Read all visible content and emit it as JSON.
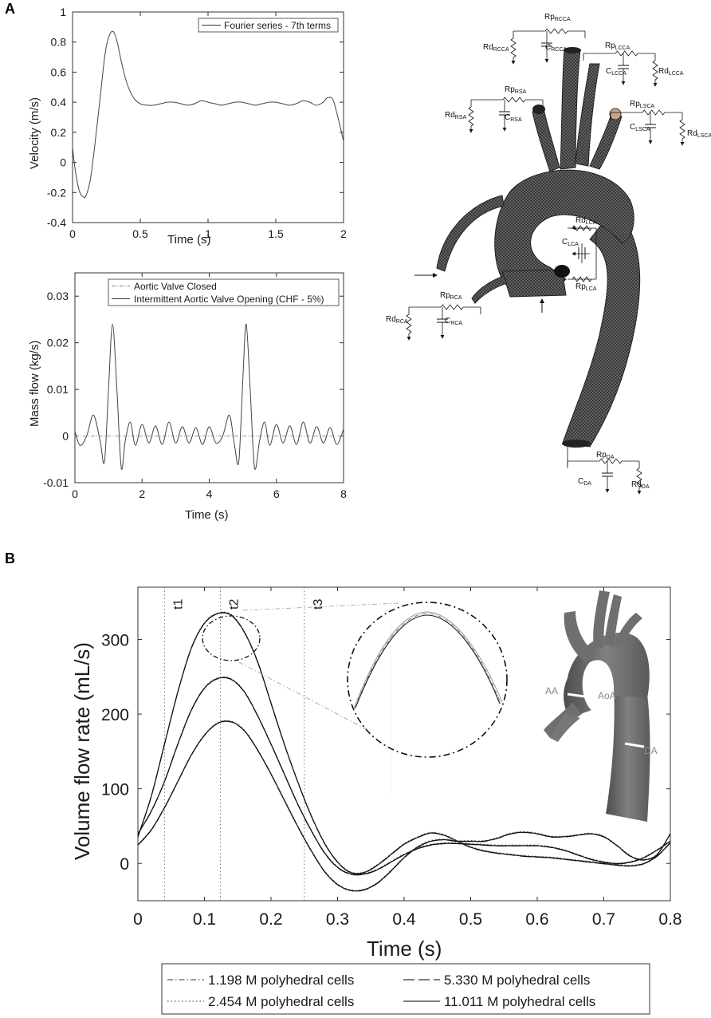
{
  "panels": {
    "a_label": "A",
    "b_label": "B"
  },
  "chart_data": [
    {
      "type": "line",
      "panel": "A",
      "xlabel": "Time (s)",
      "ylabel": "Velocity (m/s)",
      "xlim": [
        0,
        2
      ],
      "ylim": [
        -0.4,
        1
      ],
      "xticks": [
        0,
        0.5,
        1,
        1.5,
        2
      ],
      "xticklabels": [
        "0",
        "0.5",
        "1",
        "1.5",
        "2"
      ],
      "yticks": [
        -0.4,
        -0.2,
        0,
        0.2,
        0.4,
        0.6,
        0.8,
        1
      ],
      "yticklabels": [
        "-0.4",
        "-0.2",
        "0",
        "0.2",
        "0.4",
        "0.6",
        "0.8",
        "1"
      ],
      "legend_position": "top-right",
      "grid": false,
      "series": [
        {
          "name": "Fourier series - 7th terms",
          "style": "solid",
          "x": [
            0,
            0.02,
            0.05,
            0.08,
            0.1,
            0.13,
            0.16,
            0.2,
            0.24,
            0.27,
            0.3,
            0.33,
            0.36,
            0.4,
            0.45,
            0.5,
            0.55,
            0.6,
            0.65,
            0.7,
            0.75,
            0.8,
            0.85,
            0.9,
            0.95,
            1.0,
            1.05,
            1.1,
            1.15,
            1.2,
            1.25,
            1.3,
            1.35,
            1.4,
            1.45,
            1.5,
            1.55,
            1.6,
            1.65,
            1.7,
            1.75,
            1.8,
            1.85,
            1.88,
            1.92,
            1.95,
            1.98,
            2.0
          ],
          "y": [
            0.1,
            -0.05,
            -0.19,
            -0.23,
            -0.22,
            -0.12,
            0.08,
            0.4,
            0.72,
            0.84,
            0.87,
            0.8,
            0.67,
            0.53,
            0.43,
            0.39,
            0.38,
            0.38,
            0.39,
            0.4,
            0.4,
            0.39,
            0.38,
            0.39,
            0.41,
            0.4,
            0.39,
            0.38,
            0.39,
            0.4,
            0.4,
            0.39,
            0.38,
            0.39,
            0.4,
            0.4,
            0.39,
            0.38,
            0.39,
            0.41,
            0.4,
            0.38,
            0.4,
            0.43,
            0.42,
            0.33,
            0.22,
            0.14
          ]
        }
      ]
    },
    {
      "type": "line",
      "panel": "A",
      "xlabel": "Time (s)",
      "ylabel": "Mass flow (kg/s)",
      "xlim": [
        0,
        8
      ],
      "ylim": [
        -0.01,
        0.035
      ],
      "xticks": [
        0,
        2,
        4,
        6,
        8
      ],
      "xticklabels": [
        "0",
        "2",
        "4",
        "6",
        "8"
      ],
      "yticks": [
        -0.01,
        0,
        0.01,
        0.02,
        0.03
      ],
      "yticklabels": [
        "-0.01",
        "0",
        "0.01",
        "0.02",
        "0.03"
      ],
      "legend_position": "top-right",
      "grid": false,
      "series": [
        {
          "name": "Aortic Valve Closed",
          "style": "dash-dot",
          "x": [
            0,
            8
          ],
          "y": [
            0,
            0
          ]
        },
        {
          "name": "Intermittent Aortic Valve Opening (CHF - 5%)",
          "style": "solid",
          "x": [
            0,
            0.15,
            0.35,
            0.55,
            0.75,
            0.88,
            1.0,
            1.12,
            1.25,
            1.38,
            1.5,
            1.65,
            1.8,
            2.0,
            2.2,
            2.4,
            2.6,
            2.8,
            3.0,
            3.2,
            3.4,
            3.6,
            3.8,
            4.0,
            4.2,
            4.4,
            4.6,
            4.75,
            4.88,
            5.0,
            5.1,
            5.22,
            5.35,
            5.5,
            5.65,
            5.8,
            6.0,
            6.2,
            6.4,
            6.6,
            6.8,
            7.0,
            7.2,
            7.4,
            7.6,
            7.8,
            8.0
          ],
          "y": [
            0.001,
            -0.002,
            0.0,
            0.0045,
            -0.001,
            -0.0055,
            0.01,
            0.024,
            0.01,
            -0.0068,
            -0.001,
            0.003,
            -0.002,
            0.0025,
            -0.0015,
            0.0022,
            -0.0018,
            0.003,
            -0.0015,
            0.002,
            -0.0015,
            0.0018,
            -0.0018,
            0.002,
            -0.0015,
            0.0,
            0.0045,
            -0.0018,
            -0.0055,
            0.012,
            0.024,
            0.01,
            -0.0068,
            -0.001,
            0.003,
            -0.002,
            0.0025,
            -0.0015,
            0.0022,
            -0.0018,
            0.003,
            -0.0015,
            0.002,
            -0.0015,
            0.0018,
            -0.0018,
            0.0015
          ]
        }
      ]
    },
    {
      "type": "line",
      "panel": "B",
      "xlabel": "Time (s)",
      "ylabel": "Volume flow rate (mL/s)",
      "xlim": [
        0,
        0.8
      ],
      "ylim": [
        -50,
        370
      ],
      "xticks": [
        0,
        0.1,
        0.2,
        0.3,
        0.4,
        0.5,
        0.6,
        0.7,
        0.8
      ],
      "xticklabels": [
        "0",
        "0.1",
        "0.2",
        "0.3",
        "0.4",
        "0.5",
        "0.6",
        "0.7",
        "0.8"
      ],
      "yticks": [
        0,
        100,
        200,
        300
      ],
      "yticklabels": [
        "0",
        "100",
        "200",
        "300"
      ],
      "legend_position": "bottom",
      "grid": false,
      "time_markers": [
        {
          "label": "t1",
          "x": 0.04
        },
        {
          "label": "t2",
          "x": 0.124
        },
        {
          "label": "t3",
          "x": 0.25
        }
      ],
      "legend": [
        {
          "name": "1.198 M polyhedral cells",
          "style": "dash-dot"
        },
        {
          "name": "5.330 M polyhedral cells",
          "style": "long-dash"
        },
        {
          "name": "2.454 M polyhedral cells",
          "style": "dotted"
        },
        {
          "name": "11.011 M polyhedral cells",
          "style": "solid"
        }
      ],
      "curves": [
        {
          "segment": "AA",
          "x": [
            0,
            0.02,
            0.04,
            0.06,
            0.08,
            0.1,
            0.12,
            0.14,
            0.16,
            0.18,
            0.2,
            0.22,
            0.24,
            0.26,
            0.28,
            0.3,
            0.32,
            0.34,
            0.36,
            0.38,
            0.4,
            0.42,
            0.44,
            0.46,
            0.48,
            0.5,
            0.52,
            0.54,
            0.56,
            0.58,
            0.6,
            0.62,
            0.64,
            0.66,
            0.68,
            0.7,
            0.72,
            0.74,
            0.76,
            0.78,
            0.8
          ],
          "y": [
            36,
            90,
            160,
            230,
            288,
            322,
            335,
            333,
            310,
            270,
            215,
            160,
            110,
            65,
            28,
            2,
            -12,
            -12,
            -2,
            12,
            26,
            35,
            41,
            38,
            30,
            22,
            17,
            14,
            12,
            10,
            9,
            8,
            6,
            4,
            2,
            0,
            -2,
            -3,
            0,
            10,
            28
          ]
        },
        {
          "segment": "AoA",
          "x": [
            0,
            0.02,
            0.04,
            0.06,
            0.08,
            0.1,
            0.12,
            0.14,
            0.16,
            0.18,
            0.2,
            0.22,
            0.24,
            0.26,
            0.28,
            0.3,
            0.32,
            0.34,
            0.36,
            0.38,
            0.4,
            0.42,
            0.44,
            0.46,
            0.48,
            0.5,
            0.52,
            0.54,
            0.56,
            0.58,
            0.6,
            0.62,
            0.64,
            0.66,
            0.68,
            0.7,
            0.72,
            0.74,
            0.76,
            0.78,
            0.8
          ],
          "y": [
            40,
            70,
            110,
            160,
            205,
            235,
            248,
            247,
            230,
            198,
            160,
            120,
            80,
            45,
            15,
            -5,
            -14,
            -14,
            -8,
            2,
            12,
            20,
            25,
            27,
            27,
            26,
            25,
            24,
            24,
            24,
            24,
            22,
            18,
            12,
            6,
            2,
            0,
            2,
            8,
            18,
            30
          ]
        },
        {
          "segment": "DA",
          "x": [
            0,
            0.02,
            0.04,
            0.06,
            0.08,
            0.1,
            0.12,
            0.14,
            0.16,
            0.18,
            0.2,
            0.22,
            0.24,
            0.26,
            0.28,
            0.3,
            0.32,
            0.34,
            0.36,
            0.38,
            0.4,
            0.42,
            0.44,
            0.46,
            0.48,
            0.5,
            0.52,
            0.54,
            0.56,
            0.58,
            0.6,
            0.62,
            0.64,
            0.66,
            0.68,
            0.7,
            0.72,
            0.74,
            0.76,
            0.78,
            0.8
          ],
          "y": [
            25,
            45,
            75,
            110,
            145,
            172,
            188,
            190,
            178,
            152,
            120,
            85,
            50,
            18,
            -10,
            -28,
            -36,
            -35,
            -26,
            -10,
            8,
            22,
            30,
            32,
            30,
            30,
            30,
            34,
            40,
            42,
            40,
            36,
            36,
            38,
            40,
            36,
            24,
            10,
            5,
            12,
            40
          ]
        }
      ],
      "inset_segment_labels": [
        "AA",
        "AoA",
        "DA"
      ]
    }
  ],
  "circuit_labels": [
    {
      "main": "Rp",
      "sub": "RCCA",
      "id": "rp-rcca"
    },
    {
      "main": "Rd",
      "sub": "RCCA",
      "id": "rd-rcca"
    },
    {
      "main": "C",
      "sub": "RCCA",
      "id": "c-rcca"
    },
    {
      "main": "Rp",
      "sub": "LCCA",
      "id": "rp-lcca"
    },
    {
      "main": "C",
      "sub": "LCCA",
      "id": "c-lcca"
    },
    {
      "main": "Rd",
      "sub": "LCCA",
      "id": "rd-lcca"
    },
    {
      "main": "Rp",
      "sub": "RSA",
      "id": "rp-rsa"
    },
    {
      "main": "Rd",
      "sub": "RSA",
      "id": "rd-rsa"
    },
    {
      "main": "C",
      "sub": "RSA",
      "id": "c-rsa"
    },
    {
      "main": "Rp",
      "sub": "LSCA",
      "id": "rp-lsca"
    },
    {
      "main": "C",
      "sub": "LSCA",
      "id": "c-lsca"
    },
    {
      "main": "Rd",
      "sub": "LSCA",
      "id": "rd-lsca"
    },
    {
      "main": "Rd",
      "sub": "LCA",
      "id": "rd-lca"
    },
    {
      "main": "C",
      "sub": "LCA",
      "id": "c-lca"
    },
    {
      "main": "Rp",
      "sub": "LCA",
      "id": "rp-lca"
    },
    {
      "main": "Rp",
      "sub": "RCA",
      "id": "rp-rca"
    },
    {
      "main": "Rd",
      "sub": "RCA",
      "id": "rd-rca"
    },
    {
      "main": "C",
      "sub": "RCA",
      "id": "c-rca"
    },
    {
      "main": "Rp",
      "sub": "DA",
      "id": "rp-da"
    },
    {
      "main": "C",
      "sub": "DA",
      "id": "c-da"
    },
    {
      "main": "Rd",
      "sub": "DA",
      "id": "rd-da"
    }
  ],
  "colors": {
    "line": "#1a1a1a",
    "mesh": "#2b2b2b",
    "model": "#6f6f6f",
    "cap": "#c9a48a"
  }
}
